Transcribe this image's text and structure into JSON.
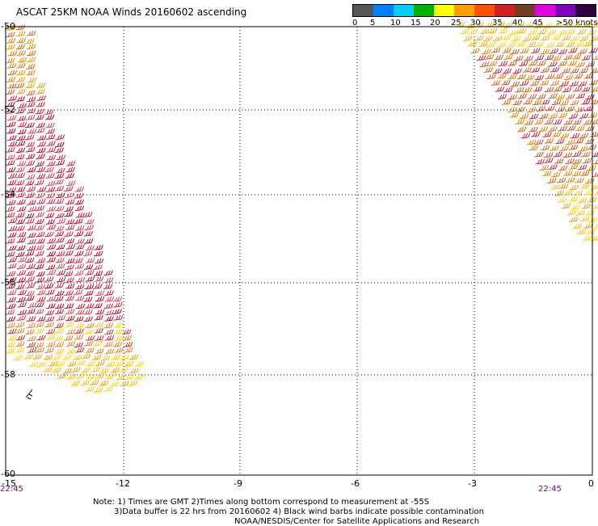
{
  "title": "ASCAT 25KM NOAA Winds 20160602 ascending",
  "legend": {
    "colors": [
      "#555555",
      "#8a8a8a",
      "#00e0ff",
      "#0070ff",
      "#0000ff",
      "#00b000",
      "#008000",
      "#ffff00",
      "#ffd000",
      "#ffa000",
      "#ff7000",
      "#ff2020",
      "#d00000",
      "#a00000",
      "#804020",
      "#c000c0",
      "#ff00ff",
      "#800080",
      "#400060",
      "#200030",
      "#100020"
    ],
    "labels": [
      "0",
      "5",
      "10",
      "15",
      "20",
      "25",
      "30",
      "35",
      "40",
      "45",
      ">50 knots"
    ]
  },
  "axes": {
    "lon_ticks": [
      "-15",
      "-12",
      "-9",
      "-6",
      "-3",
      "0"
    ],
    "lat_ticks": [
      "-50",
      "-52",
      "-54",
      "-56",
      "-58",
      "-60"
    ]
  },
  "times": {
    "left": "22:45",
    "right": "22:45"
  },
  "notes": {
    "line1": "Note: 1) Times are GMT 2)Times along bottom correspond to measurement at -55S",
    "line2": "3)Data buffer is 22 hrs from 20160602 4) Black wind barbs indicate possible contamination",
    "line3": "NOAA/NESDIS/Center for Satellite Applications and Research"
  },
  "barb_colors": [
    "#ffd700",
    "#ffa500",
    "#e07000",
    "#e04020",
    "#d02030",
    "#b01030",
    "#c04060"
  ]
}
